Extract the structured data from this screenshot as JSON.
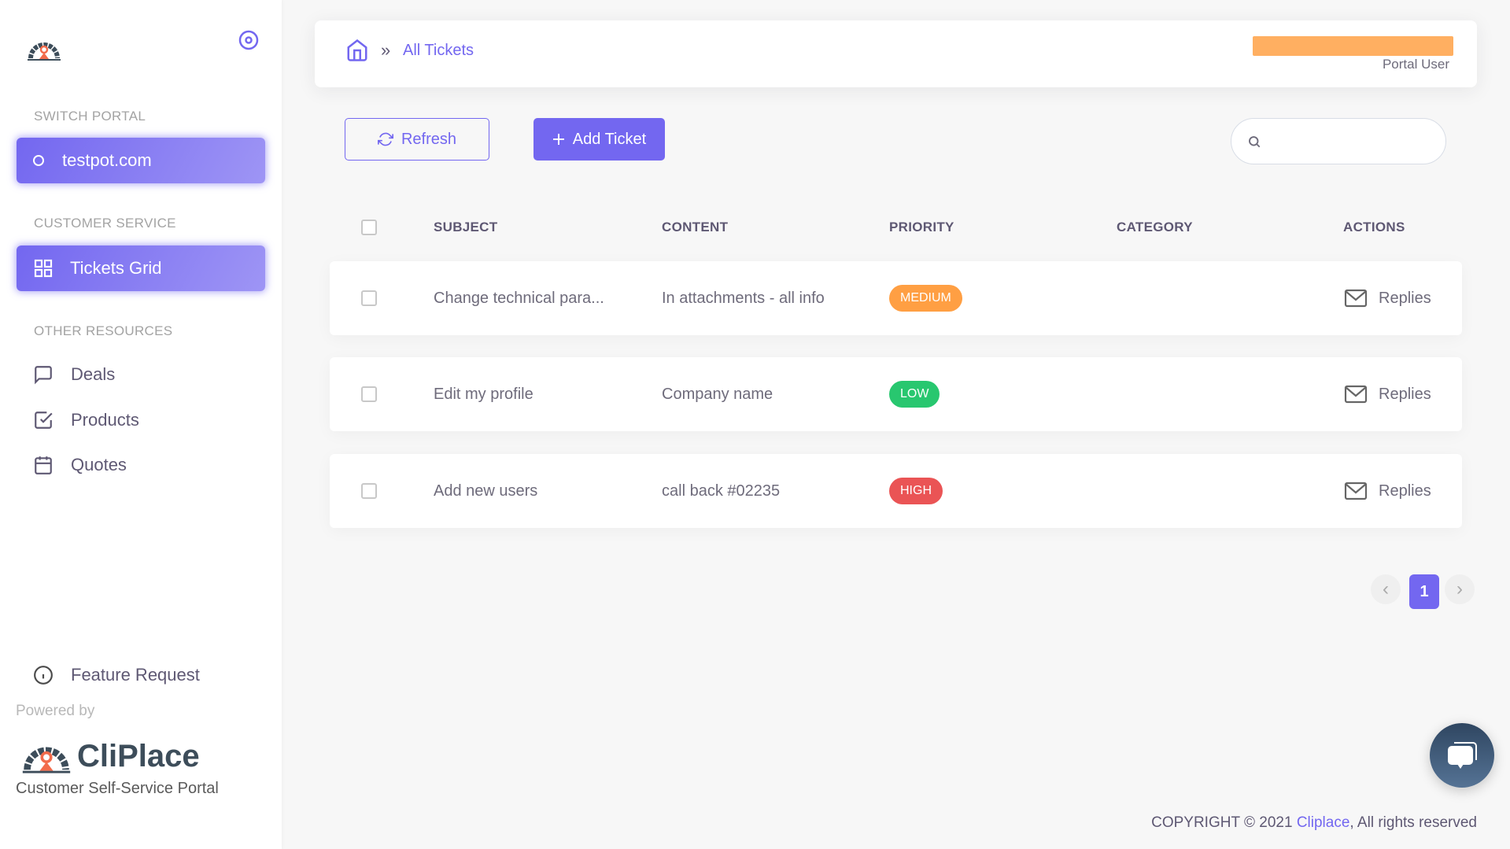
{
  "sidebar": {
    "switch_portal_label": "SWITCH PORTAL",
    "portal": "testpot.com",
    "customer_service_label": "CUSTOMER SERVICE",
    "tickets_grid": "Tickets Grid",
    "other_resources_label": "OTHER RESOURCES",
    "items": [
      {
        "label": "Deals",
        "icon": "message-square-icon"
      },
      {
        "label": "Products",
        "icon": "check-square-icon"
      },
      {
        "label": "Quotes",
        "icon": "calendar-icon"
      }
    ],
    "feature_request": "Feature Request",
    "powered_by": "Powered by",
    "brand": "CliPlace",
    "brand_tagline": "Customer Self-Service Portal"
  },
  "header": {
    "breadcrumb_sep": "»",
    "breadcrumb_current": "All Tickets",
    "user_role": "Portal User",
    "user_name_bar_color": "#ffaf61"
  },
  "toolbar": {
    "refresh": "Refresh",
    "add_ticket": "Add Ticket",
    "search_placeholder": ""
  },
  "table": {
    "columns": [
      "SUBJECT",
      "CONTENT",
      "PRIORITY",
      "CATEGORY",
      "ACTIONS"
    ],
    "rows": [
      {
        "subject": "Change technical para...",
        "content": "In attachments - all info",
        "priority": "MEDIUM",
        "priority_color": "#ff9f43",
        "category": "",
        "action": "Replies"
      },
      {
        "subject": "Edit my profile",
        "content": "Company name",
        "priority": "LOW",
        "priority_color": "#28c76f",
        "category": "",
        "action": "Replies"
      },
      {
        "subject": "Add new users",
        "content": "call back #02235",
        "priority": "HIGH",
        "priority_color": "#ea5455",
        "category": "",
        "action": "Replies"
      }
    ]
  },
  "pagination": {
    "prev": "‹",
    "current": "1",
    "next": "›"
  },
  "footer": {
    "prefix": "COPYRIGHT © 2021 ",
    "link": "Cliplace",
    "suffix": ", All rights reserved"
  },
  "colors": {
    "accent": "#7367f0"
  }
}
